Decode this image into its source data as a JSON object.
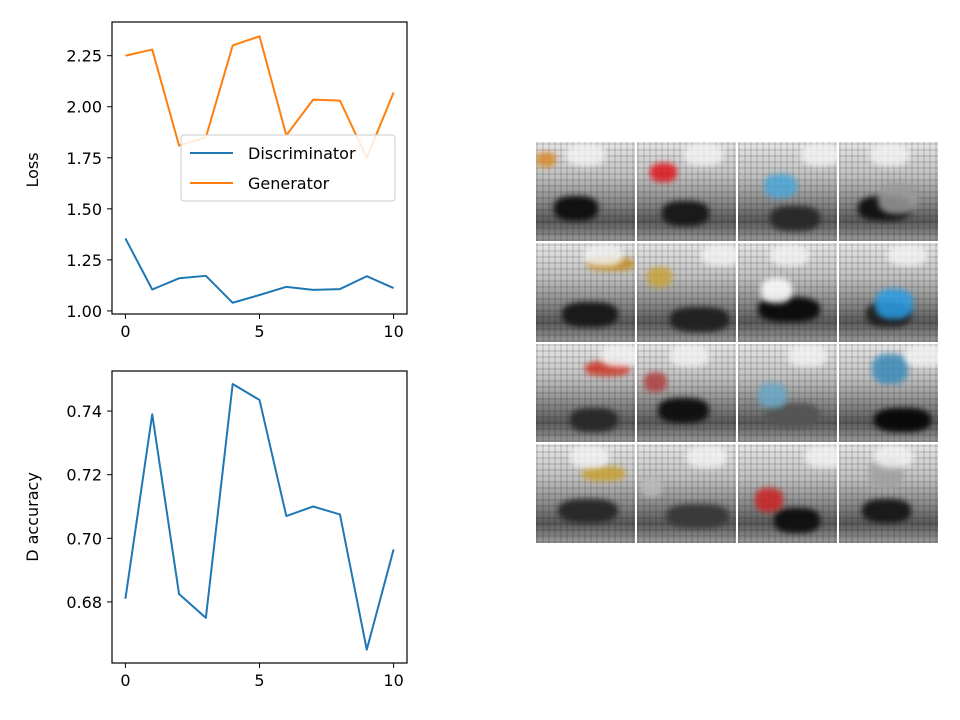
{
  "chart_data": [
    {
      "type": "line",
      "ylabel": "Loss",
      "xlabel": "",
      "x": [
        0,
        1,
        2,
        3,
        4,
        5,
        6,
        7,
        8,
        9,
        10
      ],
      "xticks": [
        "0",
        "5",
        "10"
      ],
      "yticks": [
        "1.00",
        "1.25",
        "1.50",
        "1.75",
        "2.00",
        "2.25"
      ],
      "xlim": [
        -0.5,
        10.5
      ],
      "ylim": [
        0.985,
        2.415
      ],
      "legend": "center-right",
      "grid": false,
      "series": [
        {
          "name": "Discriminator",
          "color": "#1f77b4",
          "values": [
            1.355,
            1.105,
            1.16,
            1.172,
            1.04,
            1.078,
            1.118,
            1.103,
            1.107,
            1.17,
            1.112
          ]
        },
        {
          "name": "Generator",
          "color": "#ff7f0e",
          "values": [
            2.25,
            2.28,
            1.81,
            1.85,
            2.3,
            2.345,
            1.86,
            2.035,
            2.03,
            1.75,
            2.07
          ]
        }
      ]
    },
    {
      "type": "line",
      "ylabel": "D accuracy",
      "xlabel": "",
      "x": [
        0,
        1,
        2,
        3,
        4,
        5,
        6,
        7,
        8,
        9,
        10
      ],
      "xticks": [
        "0",
        "5",
        "10"
      ],
      "yticks": [
        "0.68",
        "0.70",
        "0.72",
        "0.74"
      ],
      "xlim": [
        -0.5,
        10.5
      ],
      "ylim": [
        0.6608,
        0.7526
      ],
      "grid": false,
      "series": [
        {
          "color": "#1f77b4",
          "values": [
            0.681,
            0.739,
            0.6825,
            0.675,
            0.7485,
            0.7435,
            0.707,
            0.71,
            0.7075,
            0.665,
            0.6965
          ]
        }
      ]
    }
  ],
  "sample_grid": {
    "rows": 4,
    "cols": 4,
    "tiles": [
      {
        "accent": "#d98a2a",
        "dark": "#111111"
      },
      {
        "accent": "#e0141c",
        "dark": "#1a1a1a"
      },
      {
        "accent": "#4aa6d8",
        "dark": "#2a2a2a"
      },
      {
        "accent": "#9a9a9a",
        "dark": "#141414"
      },
      {
        "accent": "#c48a22",
        "dark": "#1a1a1a"
      },
      {
        "accent": "#c9a33a",
        "dark": "#222222"
      },
      {
        "accent": "#ffffff",
        "dark": "#0d0d0d"
      },
      {
        "accent": "#2a9fe6",
        "dark": "#222222"
      },
      {
        "accent": "#cc3322",
        "dark": "#2a2a2a"
      },
      {
        "accent": "#b04040",
        "dark": "#111111"
      },
      {
        "accent": "#6aa8c8",
        "dark": "#555555"
      },
      {
        "accent": "#3a8ab8",
        "dark": "#0a0a0a"
      },
      {
        "accent": "#c8a030",
        "dark": "#2a2a2a"
      },
      {
        "accent": "#bbbbbb",
        "dark": "#3a3a3a"
      },
      {
        "accent": "#cc2222",
        "dark": "#111111"
      },
      {
        "accent": "#a0a0a0",
        "dark": "#1a1a1a"
      }
    ]
  }
}
